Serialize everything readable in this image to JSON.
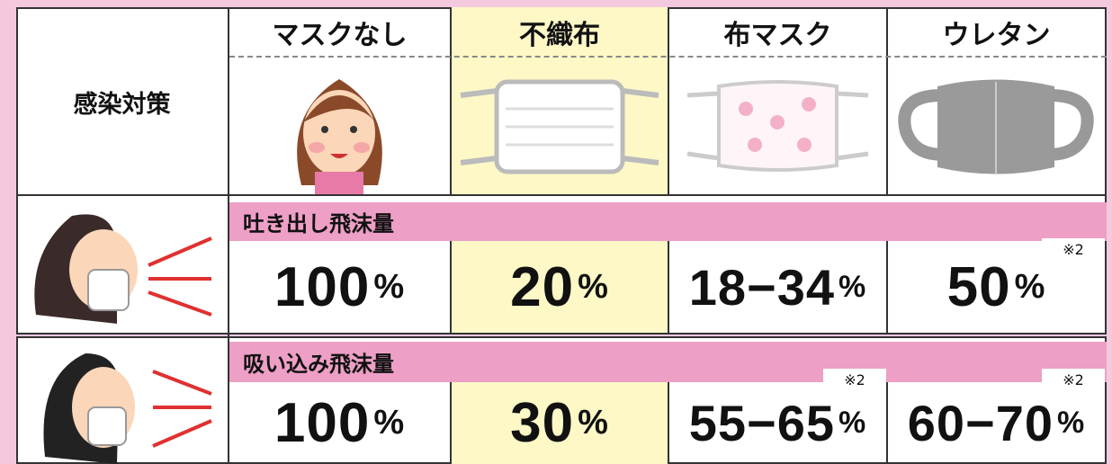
{
  "header": {
    "row_label": "感染対策",
    "columns": [
      "マスクなし",
      "不織布",
      "布マスク",
      "ウレタン"
    ]
  },
  "sections": [
    {
      "label": "吐き出し飛沫量",
      "cells": [
        {
          "value": "100",
          "unit": "%"
        },
        {
          "value": "20",
          "unit": "%"
        },
        {
          "value": "18−34",
          "unit": "%"
        },
        {
          "value": "50",
          "unit": "%",
          "note": "※2"
        }
      ]
    },
    {
      "label": "吸い込み飛沫量",
      "cells": [
        {
          "value": "100",
          "unit": "%"
        },
        {
          "value": "30",
          "unit": "%"
        },
        {
          "value": "55−65",
          "unit": "%",
          "note": "※2"
        },
        {
          "value": "60−70",
          "unit": "%",
          "note": "※2"
        }
      ]
    }
  ]
}
